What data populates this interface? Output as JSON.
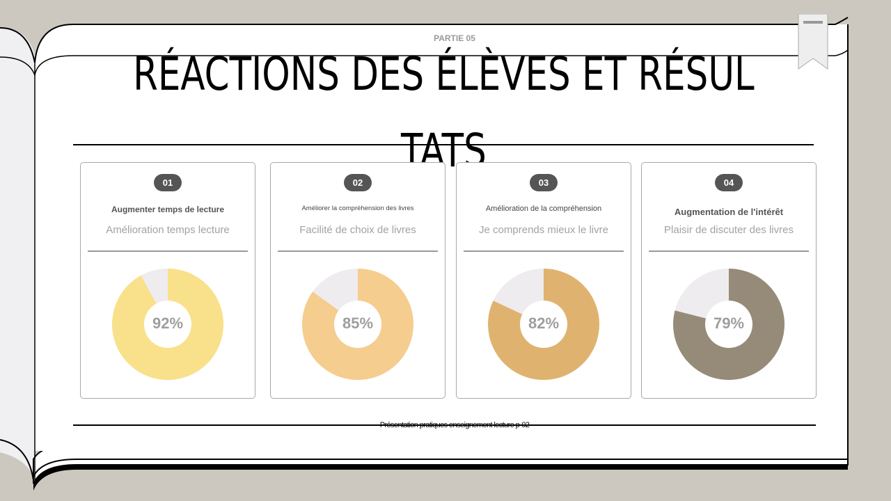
{
  "header": {
    "section": "PARTIE 05",
    "title": "RÉACTIONS DES ÉLÈVES ET RÉSULTATS"
  },
  "cards": [
    {
      "badge": "01",
      "title": "Augmenter temps de lecture",
      "subtitle": "Amélioration temps lecture",
      "value_label": "92%"
    },
    {
      "badge": "02",
      "title": "Améliorer la compréhension des livres",
      "subtitle": "Facilité de choix de livres",
      "value_label": "85%"
    },
    {
      "badge": "03",
      "title": "Amélioration de la compréhension",
      "subtitle": "Je comprends mieux le livre",
      "value_label": "82%"
    },
    {
      "badge": "04",
      "title": "Augmentation de l'intérêt",
      "subtitle": "Plaisir de discuter des livres",
      "value_label": "79%"
    }
  ],
  "chart_data": [
    {
      "type": "pie",
      "donut": true,
      "values": [
        92,
        8
      ],
      "colors": [
        "#f9e08a",
        "#eeecee"
      ]
    },
    {
      "type": "pie",
      "donut": true,
      "values": [
        85,
        15
      ],
      "colors": [
        "#f5cd8e",
        "#eeecee"
      ]
    },
    {
      "type": "pie",
      "donut": true,
      "values": [
        82,
        18
      ],
      "colors": [
        "#dfb36f",
        "#eeecee"
      ]
    },
    {
      "type": "pie",
      "donut": true,
      "values": [
        79,
        21
      ],
      "colors": [
        "#958b78",
        "#eeecee"
      ]
    }
  ],
  "footer": {
    "text": "Présentation pratiques enseignement lecture p-02"
  }
}
